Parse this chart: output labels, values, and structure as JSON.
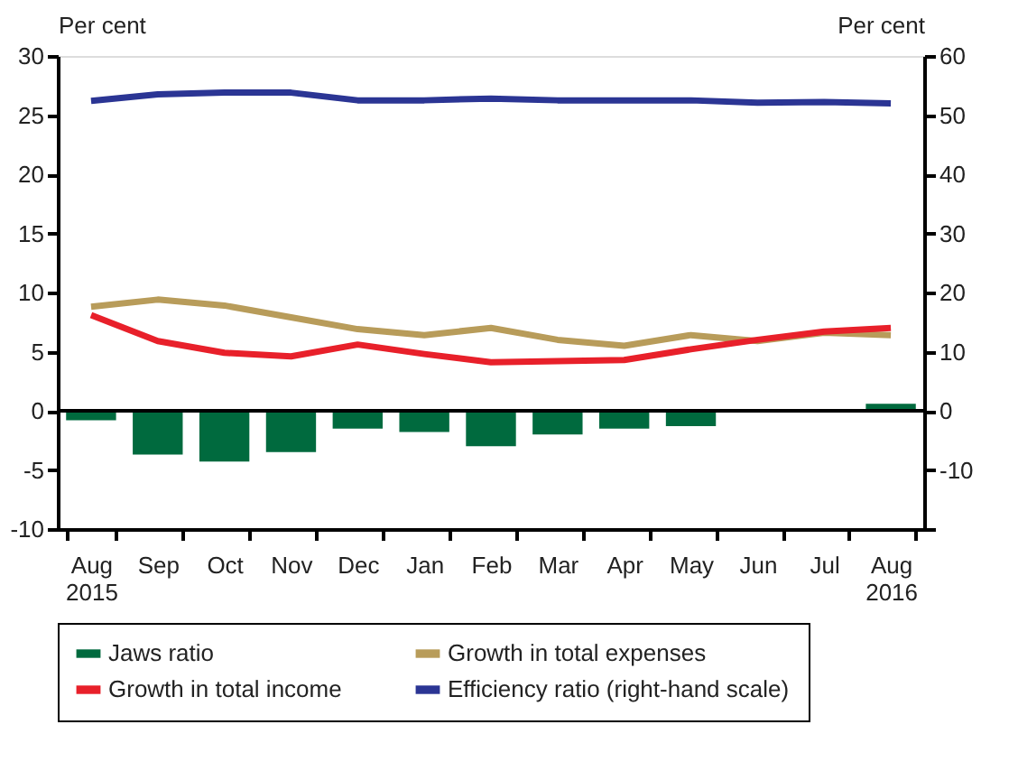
{
  "chart_data": {
    "type": "bar",
    "ylabel": "Per cent",
    "y2label": "Per cent",
    "categories": [
      "Aug 2015",
      "Sep",
      "Oct",
      "Nov",
      "Dec",
      "Jan",
      "Feb",
      "Mar",
      "Apr",
      "May",
      "Jun",
      "Jul",
      "Aug 2016"
    ],
    "series": [
      {
        "name": "Jaws ratio",
        "color": "#006a3e",
        "values": [
          -0.8,
          -3.7,
          -4.3,
          -3.5,
          -1.5,
          -1.8,
          -3.0,
          -2.0,
          -1.5,
          -1.3,
          null,
          null,
          0.6
        ]
      },
      {
        "name": "Growth in total expenses",
        "type": "line",
        "color": "#b89c5a",
        "values": [
          8.8,
          9.4,
          8.9,
          7.9,
          6.9,
          6.4,
          7.0,
          6.0,
          5.5,
          6.4,
          5.9,
          6.6,
          6.4
        ]
      },
      {
        "name": "Growth in total income",
        "type": "line",
        "color": "#e8202a",
        "values": [
          8.1,
          5.9,
          4.9,
          4.6,
          5.6,
          4.8,
          4.1,
          4.2,
          4.3,
          5.2,
          6.0,
          6.7,
          7.0
        ]
      },
      {
        "name": "Efficiency ratio (right-hand scale)",
        "type": "line",
        "axis": "y2",
        "color": "#2b3594",
        "values": [
          52.4,
          53.5,
          53.8,
          53.8,
          52.5,
          52.5,
          52.8,
          52.5,
          52.5,
          52.5,
          52.1,
          52.2,
          52.0
        ]
      }
    ],
    "ylim": [
      -10,
      30
    ],
    "yticks": [
      -10,
      -5,
      0,
      5,
      10,
      15,
      20,
      25,
      30
    ],
    "y2lim": [
      -20,
      60
    ],
    "y2ticks": [
      {
        "value": -20,
        "label": null
      },
      -10,
      0,
      10,
      20,
      30,
      40,
      50,
      60
    ],
    "ref_lines": [
      {
        "axis": "y",
        "value": 0,
        "color": "#000000"
      }
    ],
    "grid": false,
    "legend": "bottom"
  }
}
